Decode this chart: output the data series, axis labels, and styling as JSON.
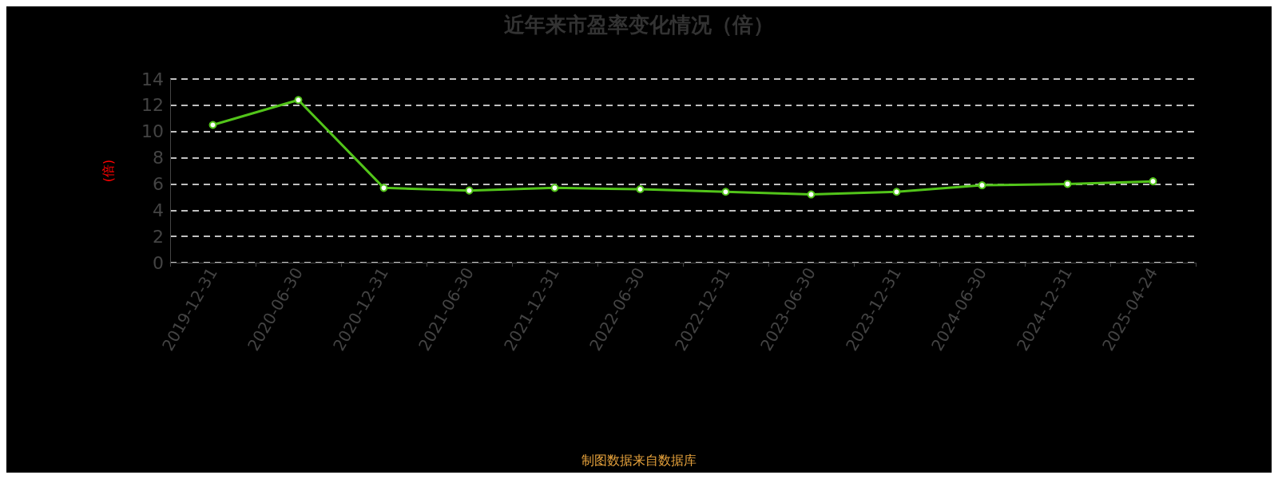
{
  "chart_data": {
    "type": "line",
    "title": "近年来市盈率变化情况（倍）",
    "ylabel": "(倍)",
    "categories": [
      "2019-12-31",
      "2020-06-30",
      "2020-12-31",
      "2021-06-30",
      "2021-12-31",
      "2022-06-30",
      "2022-12-31",
      "2023-06-30",
      "2023-12-31",
      "2024-06-30",
      "2024-12-31",
      "2025-04-24"
    ],
    "series": [
      {
        "color": "#52c41a",
        "values": [
          10.5,
          12.4,
          5.7,
          5.5,
          5.7,
          5.6,
          5.4,
          5.2,
          5.4,
          5.9,
          6.0,
          6.2
        ]
      }
    ],
    "ylim": [
      0,
      14
    ],
    "yticks": [
      0,
      2,
      4,
      6,
      8,
      10,
      12,
      14
    ],
    "grid": "y",
    "marker": "circle",
    "line_style": "solid",
    "annotations": [
      "制图数据来自数据库"
    ]
  }
}
